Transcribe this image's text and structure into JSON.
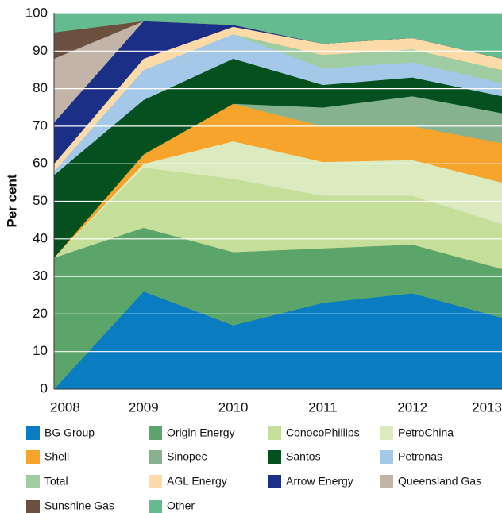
{
  "chart_data": {
    "type": "stacked_area",
    "y_label": "Per cent",
    "categories": [
      "2008",
      "2009",
      "2010",
      "2011",
      "2012",
      "2013"
    ],
    "ylim": [
      0,
      100
    ],
    "yticks": [
      0,
      10,
      20,
      30,
      40,
      50,
      60,
      70,
      80,
      90,
      100
    ],
    "grid": true,
    "series": [
      {
        "name": "BG Group",
        "color": "#0a7cc1",
        "values": [
          0,
          26,
          17,
          23,
          25.5,
          19
        ]
      },
      {
        "name": "Origin Energy",
        "color": "#5ba46a",
        "values": [
          35,
          17,
          19.5,
          14.5,
          13,
          13
        ]
      },
      {
        "name": "ConocoPhillips",
        "color": "#c5df9a",
        "values": [
          0,
          16,
          19.5,
          14,
          13,
          12
        ]
      },
      {
        "name": "PetroChina",
        "color": "#dbebbf",
        "values": [
          0,
          1,
          10,
          9,
          9.5,
          11
        ]
      },
      {
        "name": "Shell",
        "color": "#f6a42b",
        "values": [
          0,
          2.5,
          10,
          9.5,
          9,
          10.5
        ]
      },
      {
        "name": "Sinopec",
        "color": "#86b28f",
        "values": [
          0,
          0,
          0,
          5,
          8,
          8
        ]
      },
      {
        "name": "Santos",
        "color": "#05501f",
        "values": [
          22,
          14.5,
          12,
          6,
          5,
          4.5
        ]
      },
      {
        "name": "Petronas",
        "color": "#a3c8e8",
        "values": [
          1,
          8,
          6.5,
          4.5,
          4,
          3.5
        ]
      },
      {
        "name": "Total",
        "color": "#9fcca1",
        "values": [
          0,
          0,
          0,
          3.5,
          3.5,
          3.5
        ]
      },
      {
        "name": "AGL Energy",
        "color": "#fddba9",
        "values": [
          2,
          3,
          2,
          3,
          3,
          3
        ]
      },
      {
        "name": "Arrow Energy",
        "color": "#1c2f86",
        "values": [
          11,
          10,
          0.5,
          0,
          0,
          0
        ]
      },
      {
        "name": "Queensland Gas",
        "color": "#c2b5a8",
        "values": [
          17,
          0,
          0,
          0,
          0,
          0
        ]
      },
      {
        "name": "Sunshine Gas",
        "color": "#6b5040",
        "values": [
          7,
          0,
          0,
          0,
          0,
          0
        ]
      },
      {
        "name": "Other",
        "color": "#64bb8f",
        "values": [
          5,
          2,
          3,
          8,
          6.5,
          12
        ]
      }
    ]
  }
}
